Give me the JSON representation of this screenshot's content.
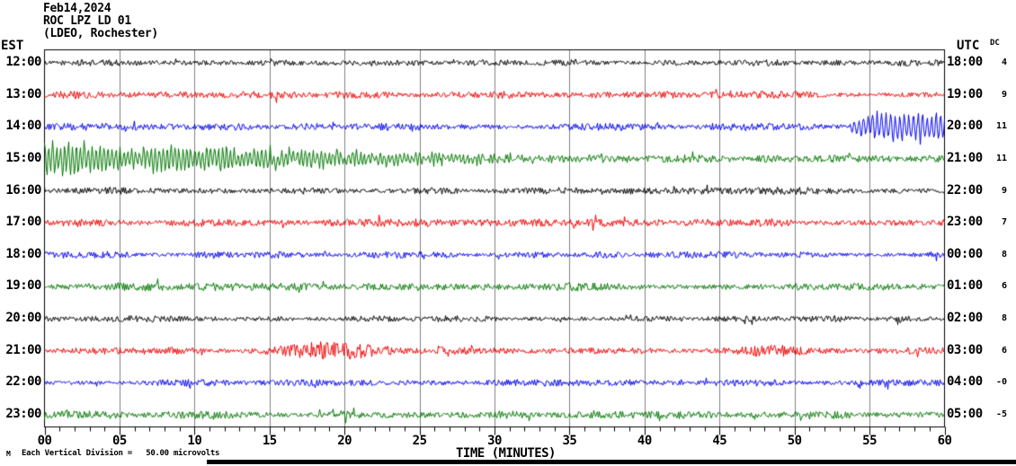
{
  "title": {
    "date": "Feb14,2024",
    "station": "ROC LPZ LD 01",
    "location": "(LDEO, Rochester)"
  },
  "axes": {
    "left_header": "EST",
    "right_header": "UTC",
    "dc_header": "DC",
    "x_label": "TIME (MINUTES)",
    "x_tick_labels": [
      "00",
      "05",
      "10",
      "15",
      "20",
      "25",
      "30",
      "35",
      "40",
      "45",
      "50",
      "55",
      "60"
    ],
    "x_min": 0,
    "x_max": 60,
    "major_tick_minutes": 5,
    "minor_tick_minutes": 1
  },
  "footer": {
    "scale_note": "Each Vertical Division =   50.00 microvolts",
    "corner_glyph": "M"
  },
  "chart_data": {
    "type": "line",
    "subtype": "helicorder-seismogram",
    "grid": true,
    "grid_color": "#808080",
    "frame_color": "#000000",
    "minutes_per_row": 60,
    "vertical_division_microvolts": 50.0,
    "rows": [
      {
        "est": "12:00",
        "utc": "18:00",
        "dc": "4",
        "color": "#000000",
        "noise_amp": 3.0,
        "events": []
      },
      {
        "est": "13:00",
        "utc": "19:00",
        "dc": "9",
        "color": "#ee0000",
        "noise_amp": 3.8,
        "events": []
      },
      {
        "est": "14:00",
        "utc": "20:00",
        "dc": "11",
        "color": "#0000ee",
        "noise_amp": 3.2,
        "events": [
          {
            "type": "oscillation",
            "freq_cpm": 3.3,
            "phase": 0.5,
            "envelope": [
              [
                53.2,
                0
              ],
              [
                54.3,
                8
              ],
              [
                55.3,
                13
              ],
              [
                57.5,
                13.5
              ],
              [
                60,
                12.5
              ]
            ],
            "description": "large monochromatic oscillations, minutes 53-60 (event onset)"
          }
        ]
      },
      {
        "est": "15:00",
        "utc": "21:00",
        "dc": "11",
        "color": "#007700",
        "noise_amp": 3.8,
        "events": [
          {
            "type": "oscillation",
            "freq_cpm": 3.8,
            "phase": 1.1,
            "envelope": [
              [
                0,
                15.5
              ],
              [
                1.5,
                16
              ],
              [
                4,
                13
              ],
              [
                5.5,
                8
              ],
              [
                7.5,
                13
              ],
              [
                10.5,
                12
              ],
              [
                13,
                9
              ],
              [
                16,
                7.5
              ],
              [
                20,
                6.5
              ],
              [
                25,
                5
              ],
              [
                30,
                3.5
              ],
              [
                36,
                1.5
              ],
              [
                42,
                0
              ]
            ],
            "description": "continuation of event, decaying coda minutes 0-40"
          }
        ]
      },
      {
        "est": "16:00",
        "utc": "22:00",
        "dc": "9",
        "color": "#000000",
        "noise_amp": 3.1,
        "events": []
      },
      {
        "est": "17:00",
        "utc": "23:00",
        "dc": "7",
        "color": "#ee0000",
        "noise_amp": 3.7,
        "events": []
      },
      {
        "est": "18:00",
        "utc": "00:00",
        "dc": "8",
        "color": "#0000ee",
        "noise_amp": 3.1,
        "events": []
      },
      {
        "est": "19:00",
        "utc": "01:00",
        "dc": "6",
        "color": "#007700",
        "noise_amp": 3.6,
        "events": []
      },
      {
        "est": "20:00",
        "utc": "02:00",
        "dc": "8",
        "color": "#000000",
        "noise_amp": 3.0,
        "events": []
      },
      {
        "est": "21:00",
        "utc": "03:00",
        "dc": "6",
        "color": "#ee0000",
        "noise_amp": 3.5,
        "events": [
          {
            "type": "noise-burst",
            "envelope": [
              [
                14,
                1
              ],
              [
                16.5,
                1.7
              ],
              [
                18.5,
                2.4
              ],
              [
                20.5,
                2.4
              ],
              [
                22.5,
                1.6
              ],
              [
                24.5,
                1
              ]
            ],
            "description": "high-amplitude noise burst minutes 16-24"
          },
          {
            "type": "noise-burst",
            "envelope": [
              [
                44,
                1
              ],
              [
                46.5,
                1.5
              ],
              [
                49,
                1.5
              ],
              [
                51,
                1
              ]
            ],
            "description": "minor burst minutes 45-50"
          }
        ]
      },
      {
        "est": "22:00",
        "utc": "04:00",
        "dc": "-0",
        "color": "#0000ee",
        "noise_amp": 3.2,
        "events": []
      },
      {
        "est": "23:00",
        "utc": "05:00",
        "dc": "-5",
        "color": "#007700",
        "noise_amp": 3.6,
        "events": []
      }
    ]
  }
}
